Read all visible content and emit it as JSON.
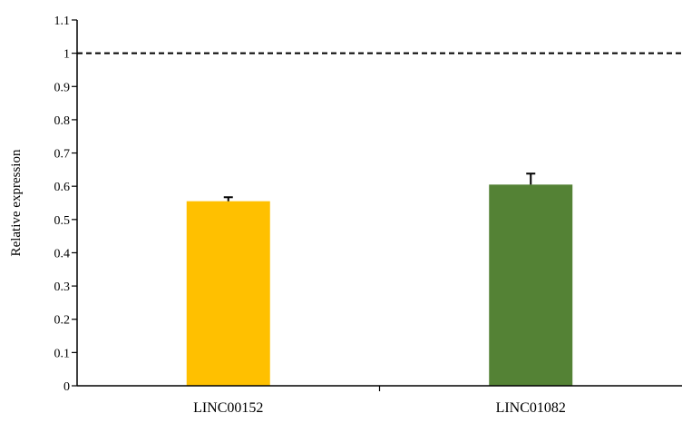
{
  "chart_data": {
    "type": "bar",
    "title": "",
    "xlabel": "",
    "ylabel": "Relative expression",
    "categories": [
      "LINC00152",
      "LINC01082"
    ],
    "values": [
      0.555,
      0.605
    ],
    "error": [
      0.012,
      0.033
    ],
    "colors": [
      "#FFC000",
      "#548235"
    ],
    "ylim": [
      0,
      1.1
    ],
    "yticks": [
      "0",
      "0.1",
      "0.2",
      "0.3",
      "0.4",
      "0.5",
      "0.6",
      "0.7",
      "0.8",
      "0.9",
      "1",
      "1.1"
    ],
    "reference_line": {
      "y": 1,
      "style": "dashed"
    },
    "grid": false,
    "legend": "none"
  }
}
